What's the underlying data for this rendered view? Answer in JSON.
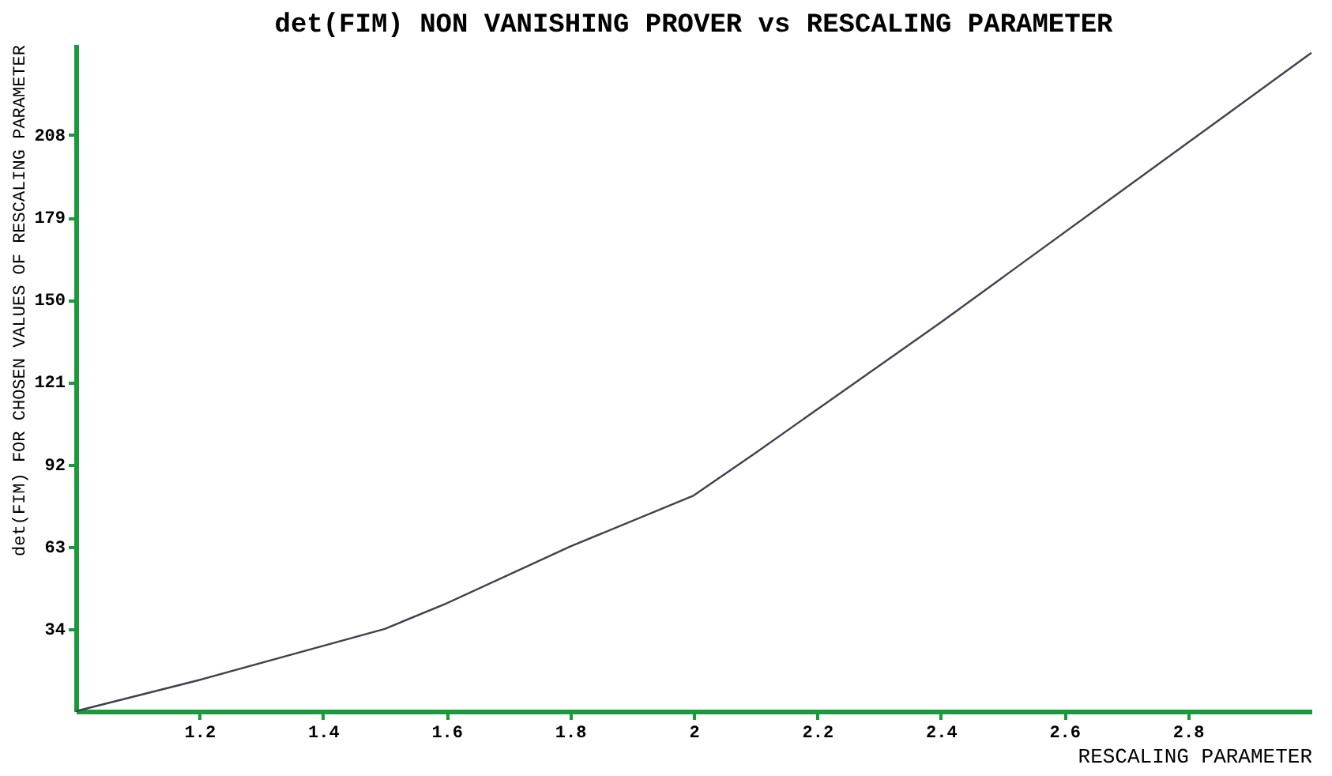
{
  "chart_data": {
    "type": "line",
    "title": "det(FIM) NON VANISHING PROVER vs RESCALING PARAMETER",
    "xlabel": "RESCALING PARAMETER",
    "ylabel": "det(FIM) FOR CHOSEN VALUES OF  RESCALING PARAMETER",
    "x": [
      1.0,
      1.2,
      1.4,
      1.5,
      1.6,
      1.8,
      2.0,
      2.1,
      2.4,
      3.0
    ],
    "series": [
      {
        "color": "#404050",
        "values": [
          5,
          16,
          28,
          34,
          43,
          63,
          81,
          96,
          142,
          237
        ]
      }
    ],
    "xlim": [
      1,
      3
    ],
    "xticks": [
      1.2,
      1.4,
      1.6,
      1.8,
      {
        "value": 2,
        "label": "2"
      },
      2.2,
      2.4,
      2.6,
      2.8
    ],
    "ylim": [
      5,
      240
    ],
    "yticks": [
      34,
      63,
      92,
      121,
      150,
      179,
      208
    ],
    "grid": false,
    "marker": "none",
    "line_style": "solid"
  }
}
